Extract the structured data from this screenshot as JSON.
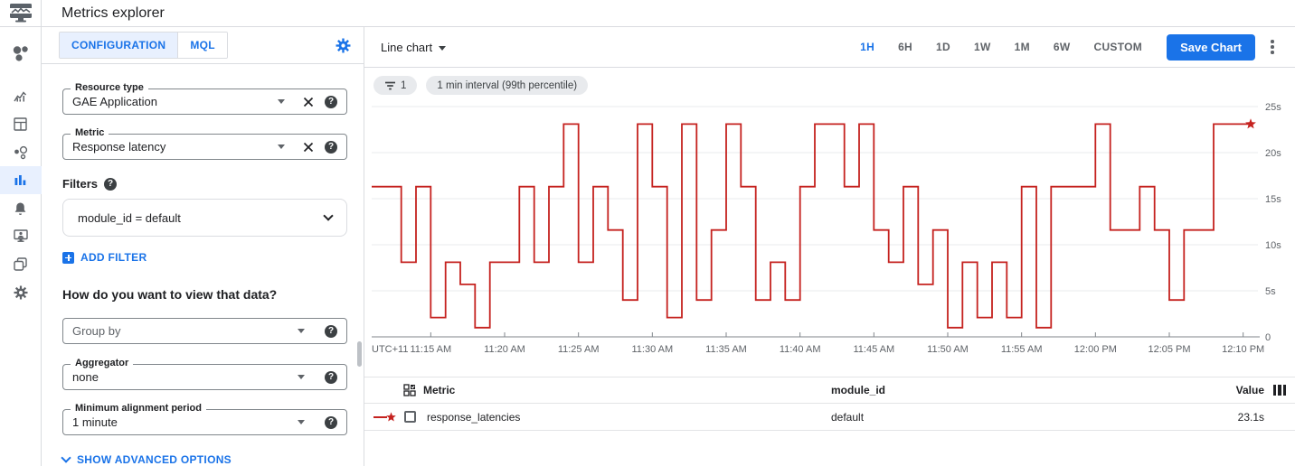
{
  "topbar": {
    "title": "Metrics explorer"
  },
  "sidebar": {
    "items": [
      "monitoring-overview",
      "metrics",
      "dashboards",
      "services",
      "metrics-explorer",
      "alerting",
      "uptime-checks",
      "groups",
      "settings"
    ],
    "active": "metrics-explorer"
  },
  "config": {
    "tabs": {
      "configuration": "CONFIGURATION",
      "mql": "MQL",
      "active": "CONFIGURATION"
    },
    "resource_type": {
      "label": "Resource type",
      "value": "GAE Application"
    },
    "metric": {
      "label": "Metric",
      "value": "Response latency"
    },
    "filters": {
      "label": "Filters",
      "value": "module_id = default",
      "add_label": "ADD FILTER"
    },
    "view_question": "How do you want to view that data?",
    "group_by": {
      "placeholder": "Group by"
    },
    "aggregator": {
      "label": "Aggregator",
      "value": "none"
    },
    "alignment": {
      "label": "Minimum alignment period",
      "value": "1 minute"
    },
    "advanced_label": "SHOW ADVANCED OPTIONS"
  },
  "chart_header": {
    "type_label": "Line chart",
    "ranges": [
      "1H",
      "6H",
      "1D",
      "1W",
      "1M",
      "6W",
      "CUSTOM"
    ],
    "active_range": "1H",
    "save_label": "Save Chart"
  },
  "chips": {
    "filter_count": "1",
    "interval_label": "1 min interval (99th percentile)"
  },
  "chart_data": {
    "type": "line",
    "subtype": "step-after",
    "unit": "seconds",
    "timezone": "UTC+11",
    "start_time": "11:11 AM",
    "interval_minutes": 1,
    "ylim": [
      0,
      25
    ],
    "grid": true,
    "end_marker": "star",
    "y_ticks": [
      {
        "value": 25,
        "label": "25s"
      },
      {
        "value": 20,
        "label": "20s"
      },
      {
        "value": 15,
        "label": "15s"
      },
      {
        "value": 10,
        "label": "10s"
      },
      {
        "value": 5,
        "label": "5s"
      },
      {
        "value": 0,
        "label": "0"
      }
    ],
    "x_ticks": [
      {
        "label": "UTC+11",
        "minute": 0,
        "tick": false,
        "align": "left"
      },
      {
        "label": "11:15 AM",
        "minute": 4,
        "tick": true
      },
      {
        "label": "11:20 AM",
        "minute": 9,
        "tick": true
      },
      {
        "label": "11:25 AM",
        "minute": 14,
        "tick": true
      },
      {
        "label": "11:30 AM",
        "minute": 19,
        "tick": true
      },
      {
        "label": "11:35 AM",
        "minute": 24,
        "tick": true
      },
      {
        "label": "11:40 AM",
        "minute": 29,
        "tick": true
      },
      {
        "label": "11:45 AM",
        "minute": 34,
        "tick": true
      },
      {
        "label": "11:50 AM",
        "minute": 39,
        "tick": true
      },
      {
        "label": "11:55 AM",
        "minute": 44,
        "tick": true
      },
      {
        "label": "12:00 PM",
        "minute": 49,
        "tick": true
      },
      {
        "label": "12:05 PM",
        "minute": 54,
        "tick": true
      },
      {
        "label": "12:10 PM",
        "minute": 59,
        "tick": true
      }
    ],
    "series": [
      {
        "name": "response_latencies",
        "color": "#c5221f",
        "values": [
          16.3,
          16.3,
          8.1,
          16.3,
          2.1,
          8.1,
          5.7,
          1.0,
          8.1,
          8.1,
          16.3,
          8.1,
          16.3,
          23.1,
          8.1,
          16.3,
          11.6,
          4.0,
          23.1,
          16.3,
          2.1,
          23.1,
          4.0,
          11.6,
          23.1,
          16.3,
          4.0,
          8.1,
          4.0,
          16.3,
          23.1,
          23.1,
          16.3,
          23.1,
          11.6,
          8.1,
          16.3,
          5.7,
          11.6,
          1.0,
          8.1,
          2.1,
          8.1,
          2.1,
          16.3,
          1.0,
          16.3,
          16.3,
          16.3,
          23.1,
          11.6,
          11.6,
          16.3,
          11.6,
          4.0,
          11.6,
          11.6,
          23.1,
          23.1,
          23.1
        ]
      }
    ]
  },
  "table": {
    "columns": {
      "metric": "Metric",
      "module_id": "module_id",
      "value": "Value"
    },
    "rows": [
      {
        "metric": "response_latencies",
        "module_id": "default",
        "value": "23.1s"
      }
    ]
  },
  "colors": {
    "accent_blue": "#1a73e8",
    "light_blue_bg": "#e8f0fe",
    "series_red": "#c5221f",
    "border": "#dadce0",
    "gridline": "#e8eaed",
    "text_primary": "#202124",
    "text_secondary": "#5f6368"
  }
}
